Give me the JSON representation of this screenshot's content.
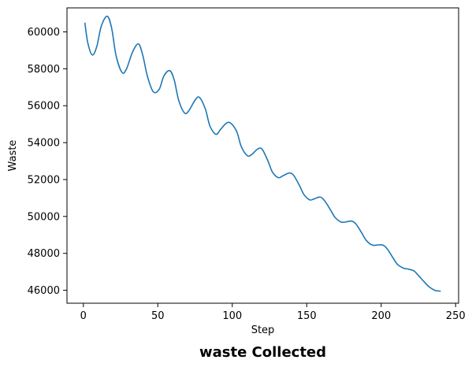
{
  "chart_data": {
    "type": "line",
    "title": "waste Collected",
    "xlabel": "Step",
    "ylabel": "Waste",
    "xlim": [
      -11,
      252
    ],
    "ylim": [
      45300,
      61300
    ],
    "xticks": [
      0,
      50,
      100,
      150,
      200,
      250
    ],
    "yticks": [
      46000,
      48000,
      50000,
      52000,
      54000,
      56000,
      58000,
      60000
    ],
    "xtick_labels": [
      "0",
      "50",
      "100",
      "150",
      "200",
      "250"
    ],
    "ytick_labels": [
      "46000",
      "48000",
      "50000",
      "52000",
      "54000",
      "56000",
      "58000",
      "60000"
    ],
    "grid": false,
    "legend": null,
    "series": [
      {
        "color": "#1f77b4",
        "points": [
          [
            1,
            60500
          ],
          [
            3,
            59400
          ],
          [
            6,
            58750
          ],
          [
            9,
            59200
          ],
          [
            12,
            60300
          ],
          [
            16,
            60850
          ],
          [
            19,
            60200
          ],
          [
            22,
            58700
          ],
          [
            26,
            57800
          ],
          [
            29,
            58000
          ],
          [
            33,
            58900
          ],
          [
            37,
            59350
          ],
          [
            40,
            58700
          ],
          [
            43,
            57600
          ],
          [
            47,
            56750
          ],
          [
            51,
            56900
          ],
          [
            54,
            57600
          ],
          [
            58,
            57900
          ],
          [
            61,
            57400
          ],
          [
            64,
            56300
          ],
          [
            68,
            55600
          ],
          [
            71,
            55750
          ],
          [
            75,
            56300
          ],
          [
            78,
            56450
          ],
          [
            82,
            55800
          ],
          [
            85,
            54900
          ],
          [
            89,
            54450
          ],
          [
            92,
            54700
          ],
          [
            96,
            55050
          ],
          [
            99,
            55050
          ],
          [
            103,
            54600
          ],
          [
            106,
            53800
          ],
          [
            110,
            53300
          ],
          [
            113,
            53350
          ],
          [
            117,
            53650
          ],
          [
            120,
            53650
          ],
          [
            124,
            53000
          ],
          [
            127,
            52400
          ],
          [
            131,
            52100
          ],
          [
            134,
            52200
          ],
          [
            138,
            52350
          ],
          [
            141,
            52250
          ],
          [
            145,
            51700
          ],
          [
            148,
            51200
          ],
          [
            152,
            50900
          ],
          [
            155,
            50950
          ],
          [
            159,
            51050
          ],
          [
            162,
            50850
          ],
          [
            166,
            50350
          ],
          [
            169,
            49950
          ],
          [
            173,
            49700
          ],
          [
            176,
            49700
          ],
          [
            180,
            49750
          ],
          [
            183,
            49600
          ],
          [
            187,
            49100
          ],
          [
            190,
            48700
          ],
          [
            194,
            48450
          ],
          [
            197,
            48450
          ],
          [
            201,
            48450
          ],
          [
            204,
            48250
          ],
          [
            208,
            47750
          ],
          [
            211,
            47400
          ],
          [
            215,
            47200
          ],
          [
            218,
            47150
          ],
          [
            222,
            47050
          ],
          [
            225,
            46800
          ],
          [
            229,
            46450
          ],
          [
            232,
            46200
          ],
          [
            236,
            46000
          ],
          [
            240,
            45950
          ]
        ]
      }
    ]
  }
}
